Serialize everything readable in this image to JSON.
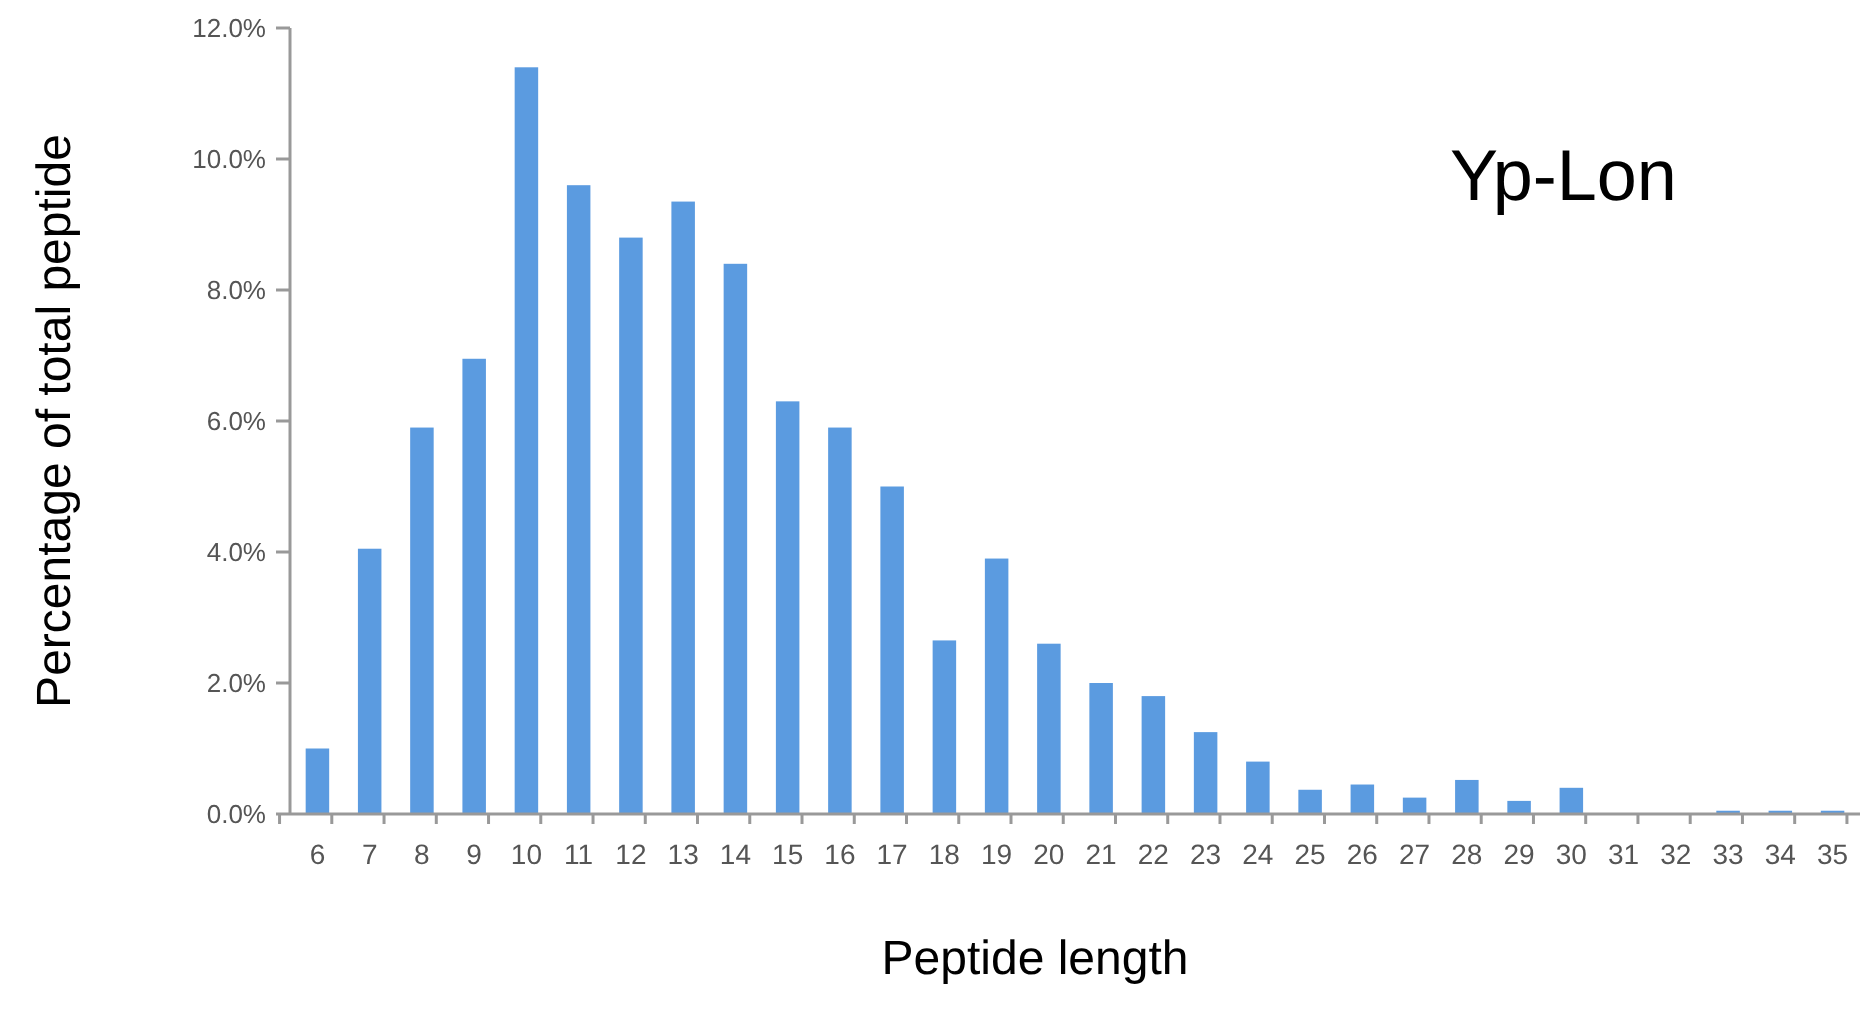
{
  "chart_data": {
    "type": "bar",
    "xlabel": "Peptide length",
    "ylabel": "Percentage of total peptide",
    "annotations": [
      "Yp-Lon"
    ],
    "categories": [
      "6",
      "7",
      "8",
      "9",
      "10",
      "11",
      "12",
      "13",
      "14",
      "15",
      "16",
      "17",
      "18",
      "19",
      "20",
      "21",
      "22",
      "23",
      "24",
      "25",
      "26",
      "27",
      "28",
      "29",
      "30",
      "31",
      "32",
      "33",
      "34",
      "35"
    ],
    "values": [
      1.0,
      4.05,
      5.9,
      6.95,
      11.4,
      9.6,
      8.8,
      9.35,
      8.4,
      6.3,
      5.9,
      5.0,
      2.65,
      3.9,
      2.6,
      2.0,
      1.8,
      1.25,
      0.8,
      0.37,
      0.45,
      0.25,
      0.52,
      0.2,
      0.4,
      0,
      0,
      0.05,
      0.05,
      0.05
    ],
    "color": "#5b9be0",
    "ylim": [
      0,
      12
    ],
    "yticks": [
      {
        "value": 0,
        "label": "0.0%"
      },
      {
        "value": 2,
        "label": "2.0%"
      },
      {
        "value": 4,
        "label": "4.0%"
      },
      {
        "value": 6,
        "label": "6.0%"
      },
      {
        "value": 8,
        "label": "8.0%"
      },
      {
        "value": 10,
        "label": "10.0%"
      },
      {
        "value": 12,
        "label": "12.0%"
      }
    ],
    "grid": false
  }
}
